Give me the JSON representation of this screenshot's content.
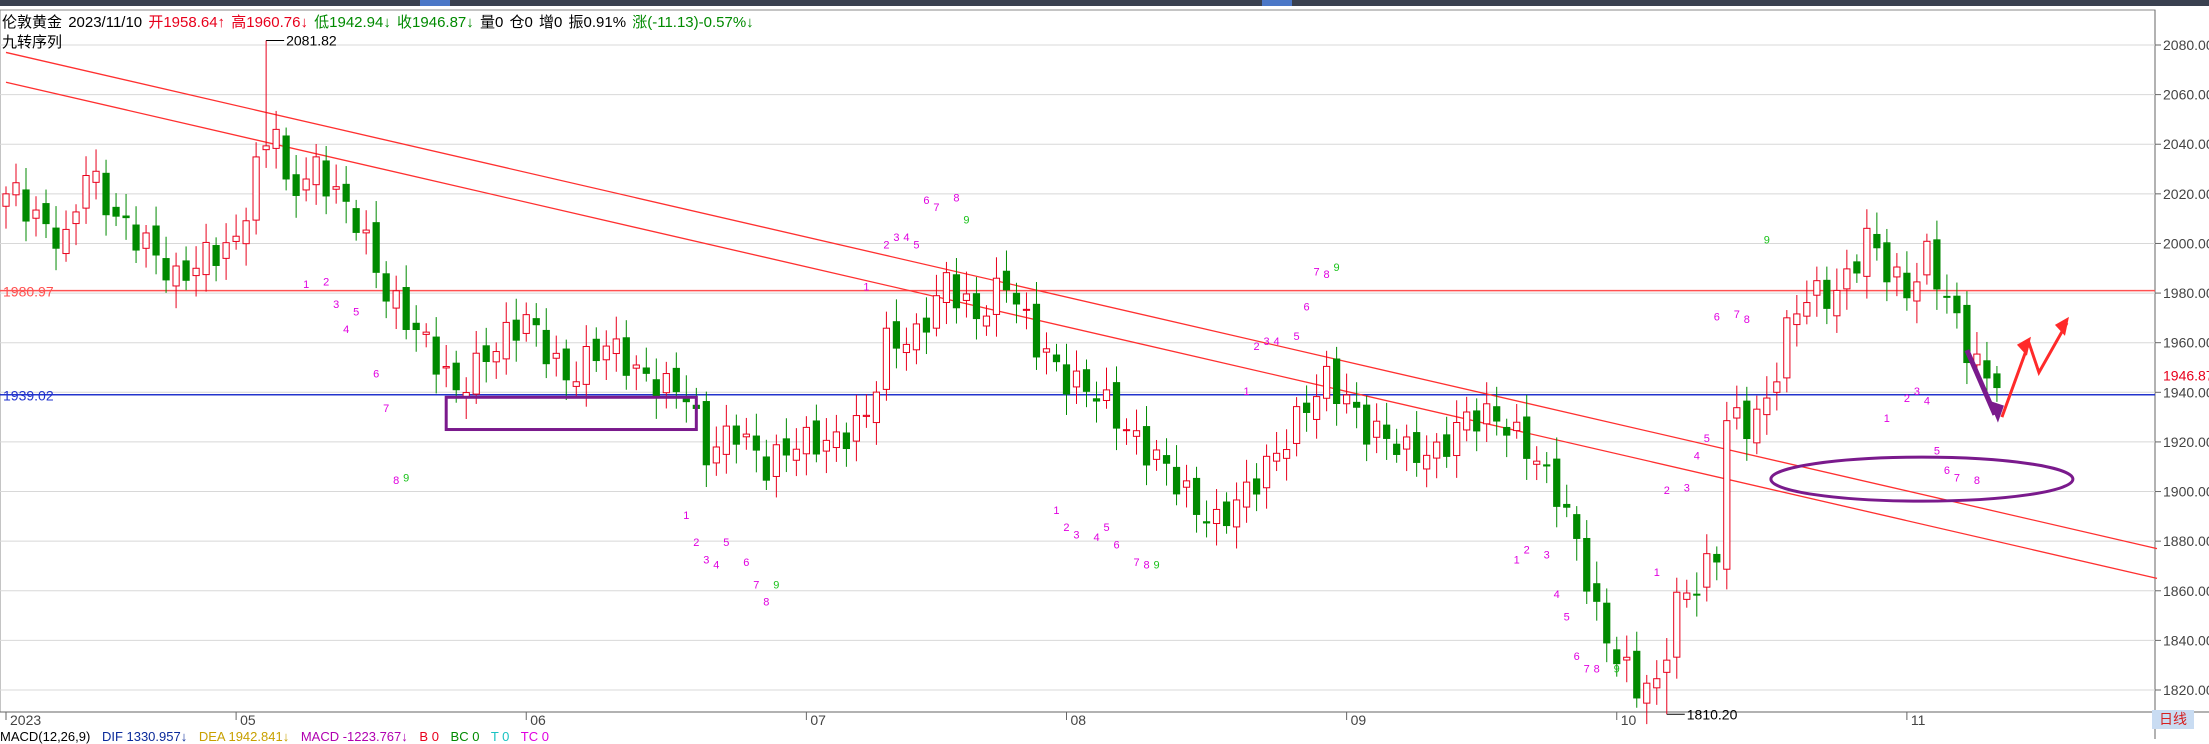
{
  "header": {
    "symbol": "伦敦黄金",
    "date": "2023/11/10",
    "open": "开1958.64↑",
    "high": "高1960.76↓",
    "low": "低1942.94↓",
    "close": "收1946.87↓",
    "volume": "量0",
    "position": "仓0",
    "increase": "增0",
    "amplitude": "振0.91%",
    "change": "涨(-11.13)-0.57%↓"
  },
  "subtitle": "九转序列",
  "colors": {
    "up": "#e8001c",
    "down": "#008a00",
    "seq_pink": "#e000e0",
    "seq_green": "#19c219",
    "hline_red": "#ff5050",
    "hline_blue": "#2233cc",
    "purple": "#7a1a8c"
  },
  "footer": {
    "macd_title": "MACD(12,26,9)",
    "dif": "DIF 1330.957↓",
    "dea": "DEA 1942.841↓",
    "macd": "MACD -1223.767↓",
    "b": "B 0",
    "bc": "BC 0",
    "t": "T 0",
    "tc": "TC 0"
  },
  "period_button": "日线",
  "chart_data": {
    "type": "candlestick",
    "title": "伦敦黄金",
    "ylim": [
      1810,
      2090
    ],
    "y_ticks": [
      1820,
      1840,
      1860,
      1880,
      1900,
      1920,
      1940,
      1960,
      1980,
      2000,
      2020,
      2040,
      2060,
      2080
    ],
    "y_tick_labels": [
      "1820.00",
      "1840.00",
      "1860.00",
      "1880.00",
      "1900.00",
      "1920.00",
      "1940.00",
      "1960.00",
      "1980.00",
      "2000.00",
      "2020.00",
      "2040.00",
      "2060.00",
      "2080.00"
    ],
    "x_labels": [
      "2023",
      "05",
      "06",
      "07",
      "08",
      "09",
      "10",
      "11"
    ],
    "x_label_index": [
      0,
      23,
      52,
      80,
      106,
      134,
      161,
      190
    ],
    "n_bars": 215,
    "last_price_label": "1946.87",
    "high_label": "2081.82",
    "high_index": 26,
    "low_label": "1810.20",
    "low_index": 166,
    "hlines": [
      {
        "value": 1980.97,
        "label": "1980.97",
        "color": "red"
      },
      {
        "value": 1939.02,
        "label": "1939.02",
        "color": "blue"
      }
    ],
    "trendlines": [
      {
        "from": [
          0,
          2077
        ],
        "to": [
          215,
          1877
        ]
      },
      {
        "from": [
          0,
          2065
        ],
        "to": [
          215,
          1865
        ]
      }
    ],
    "anchors": [
      [
        0,
        2020
      ],
      [
        1,
        2020
      ],
      [
        3,
        2010
      ],
      [
        6,
        2000
      ],
      [
        8,
        2030
      ],
      [
        11,
        2010
      ],
      [
        14,
        2000
      ],
      [
        17,
        1985
      ],
      [
        20,
        1995
      ],
      [
        23,
        2000
      ],
      [
        25,
        2030
      ],
      [
        27,
        2050
      ],
      [
        28,
        2020
      ],
      [
        31,
        2030
      ],
      [
        35,
        2010
      ],
      [
        38,
        1980
      ],
      [
        42,
        1960
      ],
      [
        45,
        1940
      ],
      [
        48,
        1955
      ],
      [
        52,
        1970
      ],
      [
        56,
        1945
      ],
      [
        60,
        1960
      ],
      [
        64,
        1945
      ],
      [
        68,
        1940
      ],
      [
        70,
        1915
      ],
      [
        73,
        1925
      ],
      [
        76,
        1910
      ],
      [
        79,
        1920
      ],
      [
        83,
        1920
      ],
      [
        86,
        1930
      ],
      [
        88,
        1960
      ],
      [
        91,
        1962
      ],
      [
        94,
        1985
      ],
      [
        97,
        1970
      ],
      [
        100,
        1985
      ],
      [
        103,
        1960
      ],
      [
        106,
        1945
      ],
      [
        109,
        1940
      ],
      [
        111,
        1930
      ],
      [
        113,
        1920
      ],
      [
        116,
        1910
      ],
      [
        119,
        1893
      ],
      [
        121,
        1887
      ],
      [
        124,
        1900
      ],
      [
        127,
        1915
      ],
      [
        130,
        1935
      ],
      [
        132,
        1945
      ],
      [
        134,
        1937
      ],
      [
        136,
        1925
      ],
      [
        138,
        1922
      ],
      [
        140,
        1916
      ],
      [
        143,
        1915
      ],
      [
        146,
        1930
      ],
      [
        149,
        1930
      ],
      [
        152,
        1918
      ],
      [
        155,
        1900
      ],
      [
        157,
        1880
      ],
      [
        159,
        1850
      ],
      [
        161,
        1833
      ],
      [
        163,
        1822
      ],
      [
        165,
        1821
      ],
      [
        167,
        1855
      ],
      [
        169,
        1863
      ],
      [
        171,
        1875
      ],
      [
        172,
        1930
      ],
      [
        174,
        1927
      ],
      [
        176,
        1935
      ],
      [
        178,
        1965
      ],
      [
        180,
        1980
      ],
      [
        182,
        1978
      ],
      [
        184,
        1985
      ],
      [
        186,
        2003
      ],
      [
        188,
        1990
      ],
      [
        190,
        1980
      ],
      [
        192,
        1995
      ],
      [
        194,
        1978
      ],
      [
        196,
        1958
      ],
      [
        198,
        1945
      ],
      [
        199,
        1946.87
      ]
    ],
    "seq_labels": [
      [
        30,
        1982,
        "1"
      ],
      [
        32,
        1983,
        "2"
      ],
      [
        33,
        1974,
        "3"
      ],
      [
        34,
        1964,
        "4"
      ],
      [
        35,
        1971,
        "5"
      ],
      [
        37,
        1946,
        "6"
      ],
      [
        38,
        1932,
        "7"
      ],
      [
        39,
        1903,
        "8"
      ],
      [
        40,
        1904,
        "9"
      ],
      [
        68,
        1889,
        "1"
      ],
      [
        69,
        1878,
        "2"
      ],
      [
        70,
        1871,
        "3"
      ],
      [
        71,
        1869,
        "4"
      ],
      [
        72,
        1878,
        "5"
      ],
      [
        74,
        1870,
        "6"
      ],
      [
        75,
        1861,
        "7"
      ],
      [
        76,
        1854,
        "8"
      ],
      [
        77,
        1861,
        "9"
      ],
      [
        86,
        1981,
        "1"
      ],
      [
        88,
        1998,
        "2"
      ],
      [
        89,
        2001,
        "3"
      ],
      [
        90,
        2001,
        "4"
      ],
      [
        91,
        1998,
        "5"
      ],
      [
        92,
        2016,
        "6"
      ],
      [
        93,
        2013,
        "7"
      ],
      [
        95,
        2017,
        "8"
      ],
      [
        96,
        2008,
        "9"
      ],
      [
        105,
        1891,
        "1"
      ],
      [
        106,
        1884,
        "2"
      ],
      [
        107,
        1881,
        "3"
      ],
      [
        109,
        1880,
        "4"
      ],
      [
        110,
        1884,
        "5"
      ],
      [
        111,
        1877,
        "6"
      ],
      [
        113,
        1870,
        "7"
      ],
      [
        114,
        1869,
        "8"
      ],
      [
        115,
        1869,
        "9"
      ],
      [
        124,
        1939,
        "1"
      ],
      [
        125,
        1957,
        "2"
      ],
      [
        126,
        1959,
        "3"
      ],
      [
        127,
        1959,
        "4"
      ],
      [
        129,
        1961,
        "5"
      ],
      [
        130,
        1973,
        "6"
      ],
      [
        131,
        1987,
        "7"
      ],
      [
        132,
        1986,
        "8"
      ],
      [
        133,
        1989,
        "9"
      ],
      [
        151,
        1871,
        "1"
      ],
      [
        152,
        1875,
        "2"
      ],
      [
        154,
        1873,
        "3"
      ],
      [
        155,
        1857,
        "4"
      ],
      [
        156,
        1848,
        "5"
      ],
      [
        157,
        1832,
        "6"
      ],
      [
        158,
        1827,
        "7"
      ],
      [
        159,
        1827,
        "8"
      ],
      [
        161,
        1827,
        "9"
      ],
      [
        165,
        1866,
        "1"
      ],
      [
        166,
        1899,
        "2"
      ],
      [
        168,
        1900,
        "3"
      ],
      [
        169,
        1913,
        "4"
      ],
      [
        170,
        1920,
        "5"
      ],
      [
        171,
        1969,
        "6"
      ],
      [
        173,
        1970,
        "7"
      ],
      [
        174,
        1968,
        "8"
      ],
      [
        176,
        2000,
        "9"
      ],
      [
        188,
        1928,
        "1"
      ],
      [
        190,
        1936,
        "2"
      ],
      [
        191,
        1939,
        "3"
      ],
      [
        192,
        1935,
        "4"
      ],
      [
        193,
        1915,
        "5"
      ],
      [
        194,
        1907,
        "6"
      ],
      [
        195,
        1904,
        "7"
      ],
      [
        197,
        1903,
        "8"
      ]
    ]
  }
}
